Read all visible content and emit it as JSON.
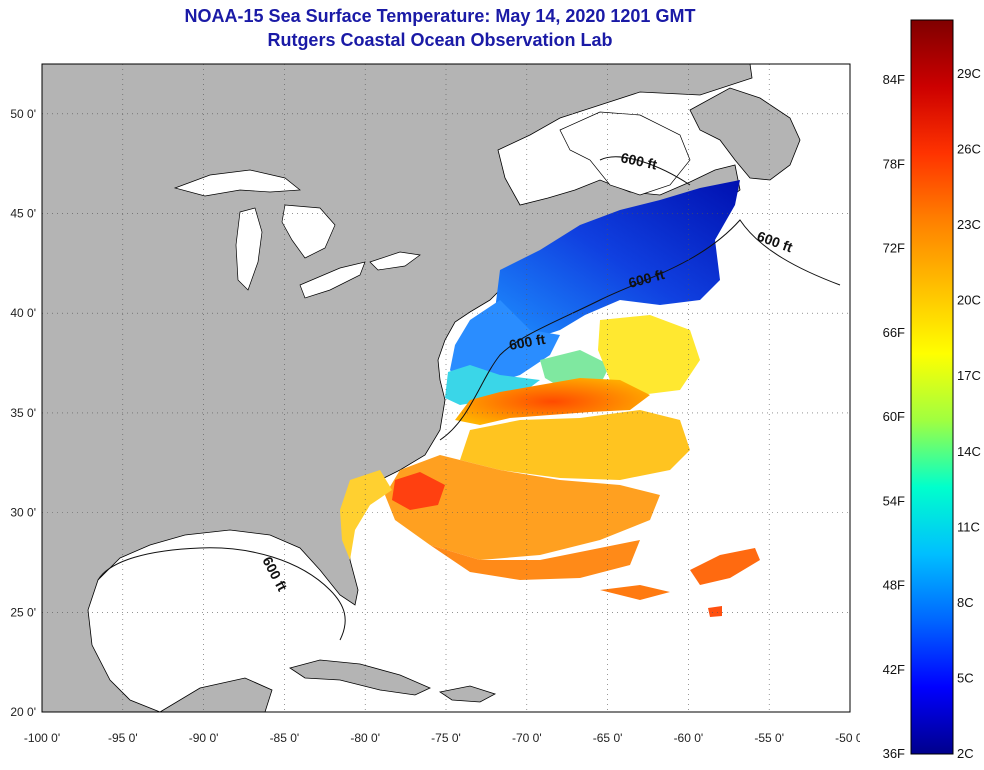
{
  "title": {
    "line1": "NOAA-15 Sea Surface Temperature:  May 14, 2020 1201 GMT",
    "line2": "Rutgers Coastal Ocean Observation Lab"
  },
  "axes": {
    "lon_ticks": [
      "-100 0'",
      "-95 0'",
      "-90 0'",
      "-85 0'",
      "-80 0'",
      "-75 0'",
      "-70 0'",
      "-65 0'",
      "-60 0'",
      "-55 0'",
      "-50 0'"
    ],
    "lat_ticks": [
      "50 0'",
      "45 0'",
      "40 0'",
      "35 0'",
      "30 0'",
      "25 0'",
      "20 0'"
    ],
    "lon_range": [
      -100,
      -50
    ],
    "lat_range": [
      20,
      52.5
    ],
    "grid": "dotted"
  },
  "contours": {
    "depth_label": "600 ft",
    "label_count": 5
  },
  "colorbar": {
    "fahrenheit_labels": [
      "84F",
      "78F",
      "72F",
      "66F",
      "60F",
      "54F",
      "48F",
      "42F",
      "36F"
    ],
    "celsius_labels": [
      "29C",
      "26C",
      "23C",
      "20C",
      "17C",
      "14C",
      "11C",
      "8C",
      "5C",
      "2C"
    ],
    "colors": [
      "#7f0000",
      "#cc0000",
      "#ff3300",
      "#ff8000",
      "#ffbf00",
      "#ffff00",
      "#a0ff40",
      "#00ffcc",
      "#00bfff",
      "#0066ff",
      "#0000ff",
      "#00008b"
    ]
  },
  "colors": {
    "land": "#b4b4b4",
    "water_nodata": "#ffffff",
    "coastline": "#000000",
    "title": "#1a1aa6"
  }
}
